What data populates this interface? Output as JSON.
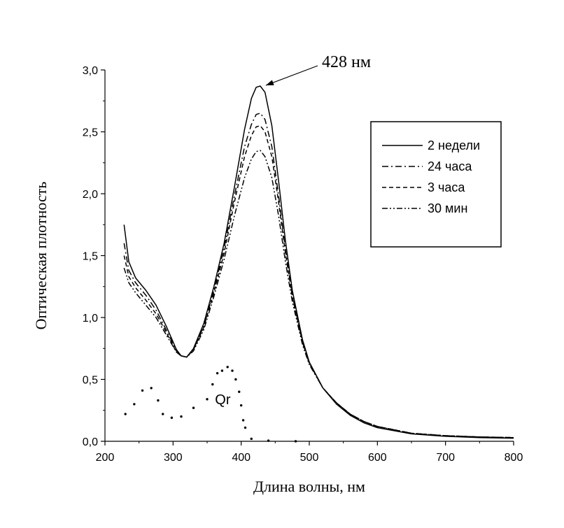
{
  "chart_data": {
    "type": "line",
    "xlabel": "Длина волны, нм",
    "ylabel": "Оптическая плотность",
    "xlim": [
      200,
      800
    ],
    "ylim": [
      0,
      3.0
    ],
    "x_ticks": [
      200,
      300,
      400,
      500,
      600,
      700,
      800
    ],
    "y_ticks": [
      0,
      0.5,
      1.0,
      1.5,
      2.0,
      2.5,
      3.0
    ],
    "x_tick_labels": [
      "200",
      "300",
      "400",
      "500",
      "600",
      "700",
      "800"
    ],
    "y_tick_labels": [
      "0,0",
      "0,5",
      "1,0",
      "1,5",
      "2,0",
      "2,5",
      "3,0"
    ],
    "grid": false,
    "legend_position": "top-right",
    "annotation": {
      "text": "428 нм",
      "x": 428,
      "y": 2.87
    },
    "series": [
      {
        "name": "2 недели",
        "style": "solid",
        "points": [
          [
            228,
            1.75
          ],
          [
            235,
            1.45
          ],
          [
            245,
            1.32
          ],
          [
            260,
            1.22
          ],
          [
            275,
            1.1
          ],
          [
            290,
            0.93
          ],
          [
            305,
            0.74
          ],
          [
            312,
            0.69
          ],
          [
            320,
            0.68
          ],
          [
            330,
            0.75
          ],
          [
            345,
            0.95
          ],
          [
            360,
            1.25
          ],
          [
            375,
            1.6
          ],
          [
            390,
            2.05
          ],
          [
            405,
            2.52
          ],
          [
            415,
            2.77
          ],
          [
            422,
            2.86
          ],
          [
            428,
            2.87
          ],
          [
            435,
            2.82
          ],
          [
            445,
            2.55
          ],
          [
            455,
            2.1
          ],
          [
            465,
            1.62
          ],
          [
            475,
            1.22
          ],
          [
            490,
            0.82
          ],
          [
            500,
            0.64
          ],
          [
            520,
            0.43
          ],
          [
            540,
            0.3
          ],
          [
            560,
            0.21
          ],
          [
            580,
            0.15
          ],
          [
            600,
            0.11
          ],
          [
            650,
            0.06
          ],
          [
            700,
            0.04
          ],
          [
            750,
            0.03
          ],
          [
            800,
            0.025
          ]
        ]
      },
      {
        "name": "24 часа",
        "style": "dashdot",
        "points": [
          [
            228,
            1.6
          ],
          [
            235,
            1.38
          ],
          [
            245,
            1.28
          ],
          [
            260,
            1.18
          ],
          [
            275,
            1.06
          ],
          [
            290,
            0.9
          ],
          [
            305,
            0.73
          ],
          [
            312,
            0.69
          ],
          [
            320,
            0.68
          ],
          [
            330,
            0.74
          ],
          [
            345,
            0.93
          ],
          [
            360,
            1.22
          ],
          [
            375,
            1.56
          ],
          [
            390,
            1.98
          ],
          [
            405,
            2.38
          ],
          [
            415,
            2.56
          ],
          [
            422,
            2.64
          ],
          [
            428,
            2.65
          ],
          [
            435,
            2.6
          ],
          [
            445,
            2.38
          ],
          [
            455,
            1.98
          ],
          [
            465,
            1.55
          ],
          [
            475,
            1.18
          ],
          [
            490,
            0.8
          ],
          [
            500,
            0.63
          ],
          [
            520,
            0.43
          ],
          [
            540,
            0.31
          ],
          [
            560,
            0.22
          ],
          [
            580,
            0.16
          ],
          [
            600,
            0.12
          ],
          [
            650,
            0.065
          ],
          [
            700,
            0.045
          ],
          [
            750,
            0.035
          ],
          [
            800,
            0.03
          ]
        ]
      },
      {
        "name": "3 часа",
        "style": "dashed",
        "points": [
          [
            228,
            1.5
          ],
          [
            235,
            1.33
          ],
          [
            245,
            1.24
          ],
          [
            260,
            1.14
          ],
          [
            275,
            1.03
          ],
          [
            290,
            0.88
          ],
          [
            305,
            0.72
          ],
          [
            312,
            0.69
          ],
          [
            320,
            0.68
          ],
          [
            330,
            0.74
          ],
          [
            345,
            0.92
          ],
          [
            360,
            1.2
          ],
          [
            375,
            1.52
          ],
          [
            390,
            1.93
          ],
          [
            405,
            2.3
          ],
          [
            415,
            2.47
          ],
          [
            422,
            2.54
          ],
          [
            428,
            2.55
          ],
          [
            435,
            2.5
          ],
          [
            445,
            2.3
          ],
          [
            455,
            1.93
          ],
          [
            465,
            1.52
          ],
          [
            475,
            1.17
          ],
          [
            490,
            0.8
          ],
          [
            500,
            0.63
          ],
          [
            520,
            0.43
          ],
          [
            540,
            0.31
          ],
          [
            560,
            0.22
          ],
          [
            580,
            0.16
          ],
          [
            600,
            0.12
          ],
          [
            650,
            0.065
          ],
          [
            700,
            0.045
          ],
          [
            750,
            0.035
          ],
          [
            800,
            0.03
          ]
        ]
      },
      {
        "name": "30 мин",
        "style": "dashdotdot",
        "points": [
          [
            228,
            1.4
          ],
          [
            235,
            1.28
          ],
          [
            245,
            1.2
          ],
          [
            260,
            1.1
          ],
          [
            275,
            1.0
          ],
          [
            290,
            0.86
          ],
          [
            305,
            0.72
          ],
          [
            312,
            0.69
          ],
          [
            320,
            0.68
          ],
          [
            330,
            0.73
          ],
          [
            345,
            0.9
          ],
          [
            360,
            1.17
          ],
          [
            375,
            1.47
          ],
          [
            390,
            1.82
          ],
          [
            405,
            2.13
          ],
          [
            415,
            2.28
          ],
          [
            422,
            2.34
          ],
          [
            428,
            2.35
          ],
          [
            435,
            2.3
          ],
          [
            445,
            2.13
          ],
          [
            455,
            1.82
          ],
          [
            465,
            1.45
          ],
          [
            475,
            1.13
          ],
          [
            490,
            0.78
          ],
          [
            500,
            0.62
          ],
          [
            520,
            0.43
          ],
          [
            540,
            0.31
          ],
          [
            560,
            0.22
          ],
          [
            580,
            0.16
          ],
          [
            600,
            0.12
          ],
          [
            650,
            0.065
          ],
          [
            700,
            0.045
          ],
          [
            750,
            0.035
          ],
          [
            800,
            0.03
          ]
        ]
      },
      {
        "name": "Qr",
        "style": "dotted",
        "label": "Qr",
        "label_position": [
          373,
          0.34
        ],
        "points": [
          [
            230,
            0.22
          ],
          [
            243,
            0.3
          ],
          [
            255,
            0.41
          ],
          [
            268,
            0.43
          ],
          [
            278,
            0.33
          ],
          [
            285,
            0.22
          ],
          [
            298,
            0.19
          ],
          [
            312,
            0.2
          ],
          [
            330,
            0.27
          ],
          [
            350,
            0.34
          ],
          [
            358,
            0.46
          ],
          [
            365,
            0.55
          ],
          [
            372,
            0.57
          ],
          [
            380,
            0.6
          ],
          [
            387,
            0.57
          ],
          [
            392,
            0.5
          ],
          [
            397,
            0.4
          ],
          [
            400,
            0.29
          ],
          [
            403,
            0.17
          ],
          [
            406,
            0.11
          ],
          [
            415,
            0.02
          ],
          [
            440,
            0.005
          ],
          [
            480,
            0.0
          ]
        ]
      }
    ]
  }
}
